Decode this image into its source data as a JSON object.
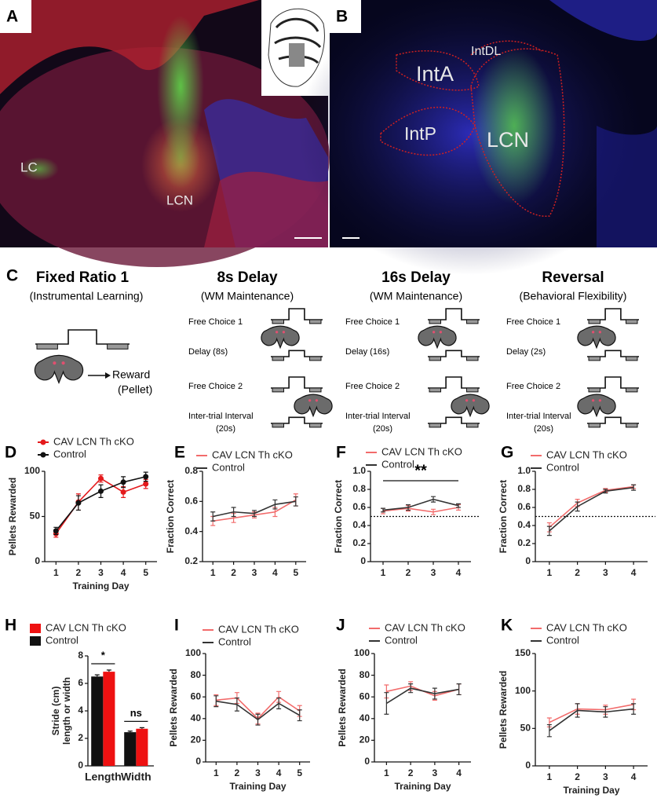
{
  "panel_letters": [
    "A",
    "B",
    "C",
    "D",
    "E",
    "F",
    "G",
    "H",
    "I",
    "J",
    "K"
  ],
  "image_a": {
    "labels": [
      "LC",
      "LCN"
    ]
  },
  "image_b": {
    "labels": [
      "IntA",
      "IntDL",
      "IntP",
      "LCN"
    ]
  },
  "schematic": {
    "fixed_ratio": {
      "title": "Fixed Ratio 1",
      "subtitle": "(Instrumental Learning)",
      "reward": "Reward",
      "pellet": "(Pellet)"
    },
    "stages": [
      {
        "title": "8s Delay",
        "subtitle": "(WM Maintenance)",
        "steps": [
          "Free Choice 1",
          "Delay (8s)",
          "Free Choice 2",
          "Inter-trial Interval",
          "(20s)"
        ]
      },
      {
        "title": "16s Delay",
        "subtitle": "(WM Maintenance)",
        "steps": [
          "Free Choice 1",
          "Delay (16s)",
          "Free Choice 2",
          "Inter-trial Interval",
          "(20s)"
        ]
      },
      {
        "title": "Reversal",
        "subtitle": "(Behavioral Flexibility)",
        "steps": [
          "Free Choice 1",
          "Delay (2s)",
          "Free Choice 2",
          "Inter-trial Interval",
          "(20s)"
        ]
      }
    ]
  },
  "chart_data": [
    {
      "type": "line",
      "x": [
        1,
        2,
        3,
        4,
        5
      ],
      "xlabel": "Training Day",
      "ylabel": [
        "Pellets Rewarded"
      ],
      "ylim": [
        0,
        100
      ],
      "yticks": [
        0,
        50,
        100
      ],
      "markers": true,
      "series": [
        {
          "name": "CAV LCN Th cKO",
          "color": "#e41a1c",
          "values": [
            31,
            66,
            92,
            77,
            86
          ],
          "errors": [
            4,
            9,
            4,
            6,
            5
          ]
        },
        {
          "name": "Control",
          "color": "#111111",
          "values": [
            34,
            65,
            78,
            88,
            94
          ],
          "errors": [
            4,
            8,
            7,
            6,
            5
          ]
        }
      ]
    },
    {
      "type": "line",
      "x": [
        1,
        2,
        3,
        4,
        5
      ],
      "xlabel": null,
      "ylabel": [
        "Fraction Correct"
      ],
      "ylim": [
        0.2,
        0.8
      ],
      "yticks": [
        0.2,
        0.4,
        0.6,
        0.8
      ],
      "series": [
        {
          "name": "CAV LCN Th cKO",
          "color": "#f26b6b",
          "values": [
            0.47,
            0.49,
            0.51,
            0.53,
            0.61
          ],
          "errors": [
            0.03,
            0.03,
            0.02,
            0.03,
            0.04
          ]
        },
        {
          "name": "Control",
          "color": "#333333",
          "values": [
            0.5,
            0.53,
            0.52,
            0.58,
            0.6
          ],
          "errors": [
            0.03,
            0.03,
            0.02,
            0.03,
            0.03
          ]
        }
      ]
    },
    {
      "type": "line",
      "x": [
        1,
        2,
        3,
        4
      ],
      "xlabel": null,
      "ylabel": [
        "Fraction Correct"
      ],
      "ylim": [
        0,
        1.0
      ],
      "yticks": [
        0,
        0.2,
        0.4,
        0.6,
        0.8,
        {
          "value": 1.0,
          "label": "1.0"
        }
      ],
      "reference_line": 0.5,
      "significance": "**",
      "series": [
        {
          "name": "CAV LCN Th cKO",
          "color": "#f26b6b",
          "values": [
            0.56,
            0.59,
            0.55,
            0.6
          ],
          "errors": [
            0.03,
            0.03,
            0.03,
            0.03
          ]
        },
        {
          "name": "Control",
          "color": "#333333",
          "values": [
            0.57,
            0.6,
            0.69,
            0.62
          ],
          "errors": [
            0.02,
            0.03,
            0.03,
            0.02
          ]
        }
      ]
    },
    {
      "type": "line",
      "x": [
        1,
        2,
        3,
        4
      ],
      "xlabel": null,
      "ylabel": [
        "Fraction Correct"
      ],
      "ylim": [
        0,
        1.0
      ],
      "yticks": [
        0,
        0.2,
        0.4,
        0.6,
        0.8,
        {
          "value": 1.0,
          "label": "1.0"
        }
      ],
      "reference_line": 0.5,
      "series": [
        {
          "name": "CAV LCN Th cKO",
          "color": "#f26b6b",
          "values": [
            0.38,
            0.65,
            0.79,
            0.83
          ],
          "errors": [
            0.05,
            0.04,
            0.02,
            0.02
          ]
        },
        {
          "name": "Control",
          "color": "#333333",
          "values": [
            0.34,
            0.61,
            0.78,
            0.82
          ],
          "errors": [
            0.05,
            0.05,
            0.02,
            0.03
          ]
        }
      ]
    },
    {
      "type": "bar",
      "categories": [
        "Length",
        "Width"
      ],
      "ylabel": [
        "Stride (cm)",
        "length or width"
      ],
      "ylim": [
        0,
        8
      ],
      "yticks": [
        0,
        2,
        4,
        6,
        8
      ],
      "significance": [
        "*",
        "ns"
      ],
      "series": [
        {
          "name": "CAV LCN Th cKO",
          "color": "#ee1111",
          "values": [
            6.85,
            2.7
          ],
          "errors": [
            0.12,
            0.08
          ]
        },
        {
          "name": "Control",
          "color": "#111111",
          "values": [
            6.5,
            2.45
          ],
          "errors": [
            0.12,
            0.08
          ]
        }
      ]
    },
    {
      "type": "line",
      "x": [
        1,
        2,
        3,
        4,
        5
      ],
      "xlabel": "Training Day",
      "ylabel": [
        "Pellets Rewarded"
      ],
      "ylim": [
        0,
        100
      ],
      "yticks": [
        0,
        20,
        40,
        60,
        80,
        100
      ],
      "series": [
        {
          "name": "CAV LCN Th cKO",
          "color": "#f26b6b",
          "values": [
            57,
            59,
            40,
            60,
            47
          ],
          "errors": [
            5,
            5,
            5,
            5,
            5
          ]
        },
        {
          "name": "Control",
          "color": "#333333",
          "values": [
            56,
            53,
            39,
            54,
            43
          ],
          "errors": [
            5,
            6,
            5,
            5,
            5
          ]
        }
      ]
    },
    {
      "type": "line",
      "x": [
        1,
        2,
        3,
        4
      ],
      "xlabel": "Training Day",
      "ylabel": [
        "Pellets Rewarded"
      ],
      "ylim": [
        0,
        100
      ],
      "yticks": [
        0,
        20,
        40,
        60,
        80,
        100
      ],
      "series": [
        {
          "name": "CAV LCN Th cKO",
          "color": "#f26b6b",
          "values": [
            65,
            70,
            61,
            67
          ],
          "errors": [
            6,
            4,
            4,
            5
          ]
        },
        {
          "name": "Control",
          "color": "#333333",
          "values": [
            54,
            68,
            63,
            67
          ],
          "errors": [
            10,
            4,
            5,
            5
          ]
        }
      ]
    },
    {
      "type": "line",
      "x": [
        1,
        2,
        3,
        4
      ],
      "xlabel": "Training Day",
      "ylabel": [
        "Pellets Rewarded"
      ],
      "ylim": [
        0,
        150
      ],
      "yticks": [
        0,
        50,
        100,
        150
      ],
      "series": [
        {
          "name": "CAV LCN Th cKO",
          "color": "#f26b6b",
          "values": [
            58,
            76,
            75,
            82
          ],
          "errors": [
            6,
            7,
            6,
            7
          ]
        },
        {
          "name": "Control",
          "color": "#333333",
          "values": [
            47,
            74,
            72,
            76
          ],
          "errors": [
            8,
            9,
            7,
            7
          ]
        }
      ]
    }
  ]
}
